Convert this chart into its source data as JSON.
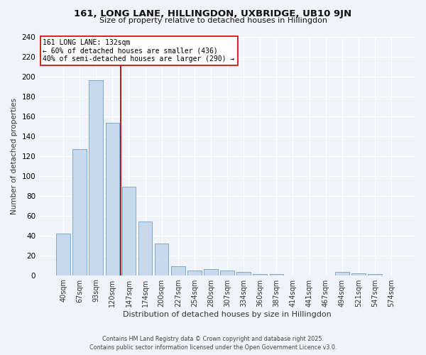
{
  "title1": "161, LONG LANE, HILLINGDON, UXBRIDGE, UB10 9JN",
  "title2": "Size of property relative to detached houses in Hillingdon",
  "xlabel": "Distribution of detached houses by size in Hillingdon",
  "ylabel": "Number of detached properties",
  "categories": [
    "40sqm",
    "67sqm",
    "93sqm",
    "120sqm",
    "147sqm",
    "174sqm",
    "200sqm",
    "227sqm",
    "254sqm",
    "280sqm",
    "307sqm",
    "334sqm",
    "360sqm",
    "387sqm",
    "414sqm",
    "441sqm",
    "467sqm",
    "494sqm",
    "521sqm",
    "547sqm",
    "574sqm"
  ],
  "values": [
    42,
    127,
    196,
    153,
    89,
    54,
    32,
    9,
    5,
    6,
    5,
    3,
    1,
    1,
    0,
    0,
    0,
    3,
    2,
    1,
    0
  ],
  "bar_color": "#c8d9ee",
  "bar_edge_color": "#7aaad0",
  "vline_color": "#cc0000",
  "annotation_title": "161 LONG LANE: 132sqm",
  "annotation_line1": "← 60% of detached houses are smaller (436)",
  "annotation_line2": "40% of semi-detached houses are larger (290) →",
  "annotation_box_color": "#ffffff",
  "annotation_box_edge": "#cc0000",
  "ylim": [
    0,
    240
  ],
  "yticks": [
    0,
    20,
    40,
    60,
    80,
    100,
    120,
    140,
    160,
    180,
    200,
    220,
    240
  ],
  "footer1": "Contains HM Land Registry data © Crown copyright and database right 2025.",
  "footer2": "Contains public sector information licensed under the Open Government Licence v3.0.",
  "bg_color": "#f0f4f8"
}
